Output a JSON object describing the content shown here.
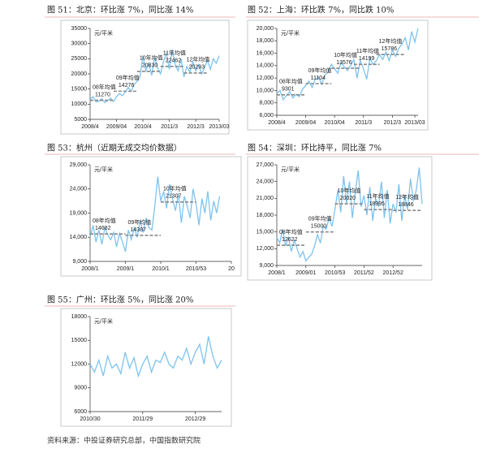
{
  "chart_data": [
    {
      "type": "line",
      "title": "图 51：北京：环比涨 7%，同比涨 14%",
      "unit": "元/平米",
      "ylim": [
        5000,
        35000
      ],
      "yticks": [
        5000,
        10000,
        15000,
        20000,
        25000,
        30000,
        35000
      ],
      "xlim": [
        0,
        44
      ],
      "xticks": [
        {
          "value": 0,
          "label": "2008/4"
        },
        {
          "value": 9,
          "label": "2009/04"
        },
        {
          "value": 18,
          "label": "2010/4"
        },
        {
          "value": 27,
          "label": "2011/3"
        },
        {
          "value": 36,
          "label": "2012/3"
        },
        {
          "value": 44,
          "label": "2013/03"
        }
      ],
      "series": [
        {
          "color": "#7ec3ee",
          "values": [
            11500,
            12500,
            10800,
            11000,
            11800,
            10500,
            11200,
            12000,
            10900,
            12500,
            13500,
            12800,
            14000,
            15500,
            14200,
            16500,
            17500,
            19000,
            26000,
            21000,
            23500,
            19500,
            25500,
            22000,
            20000,
            24000,
            27000,
            21500,
            28000,
            23000,
            21000,
            25000,
            19000,
            22500,
            20500,
            24000,
            21000,
            23000,
            20000,
            22000,
            24500,
            21500,
            25000,
            23500,
            26000
          ]
        }
      ],
      "mean_lines": [
        {
          "label": "08年均值",
          "value": 11270,
          "x": [
            0,
            8
          ]
        },
        {
          "label": "09年均值",
          "value": 14276,
          "x": [
            8,
            16
          ]
        },
        {
          "label": "10年均值",
          "value": 20830,
          "x": [
            16,
            24
          ]
        },
        {
          "label": "11年均值",
          "value": 22462,
          "x": [
            24,
            32
          ]
        },
        {
          "label": "12年均值",
          "value": 20293,
          "x": [
            32,
            40
          ]
        }
      ]
    },
    {
      "type": "line",
      "title": "图 52：上海：环比跌 7%，同比跌 10%",
      "unit": "元/平米",
      "ylim": [
        6000,
        20000
      ],
      "yticks": [
        {
          "value": 6000,
          "label": "6,000"
        },
        {
          "value": 8000,
          "label": "8,000"
        },
        {
          "value": 10000,
          "label": "10,000"
        },
        {
          "value": 12000,
          "label": "12,000"
        },
        {
          "value": 14000,
          "label": "14,000"
        },
        {
          "value": 16000,
          "label": "16,000"
        },
        {
          "value": 18000,
          "label": "18,000"
        },
        {
          "value": 20000,
          "label": "20,000"
        }
      ],
      "xlim": [
        0,
        44
      ],
      "xticks": [
        {
          "value": 0,
          "label": "2008/4"
        },
        {
          "value": 9,
          "label": "2009/04"
        },
        {
          "value": 18,
          "label": "2010/04"
        },
        {
          "value": 27,
          "label": "2011/3"
        },
        {
          "value": 36,
          "label": "2012/3"
        },
        {
          "value": 43,
          "label": "2013/03"
        }
      ],
      "series": [
        {
          "color": "#7ec3ee",
          "values": [
            9500,
            10000,
            8500,
            9200,
            9800,
            8800,
            9400,
            9000,
            10200,
            10800,
            11500,
            10500,
            11800,
            12200,
            11000,
            12500,
            13000,
            14200,
            13500,
            12800,
            14500,
            13800,
            13200,
            14000,
            15000,
            12000,
            14800,
            13500,
            11800,
            15200,
            14200,
            14800,
            15800,
            15000,
            16200,
            14800,
            16500,
            15500,
            16800,
            17500,
            18500,
            16500,
            19500,
            17800,
            20000
          ]
        }
      ],
      "mean_lines": [
        {
          "label": "08年均值",
          "value": 9301,
          "x": [
            0,
            9
          ]
        },
        {
          "label": "09年均值",
          "value": 11104,
          "x": [
            9,
            17
          ]
        },
        {
          "label": "10年均值",
          "value": 13576,
          "x": [
            17,
            26
          ]
        },
        {
          "label": "11年均值",
          "value": 14199,
          "x": [
            24,
            32
          ]
        },
        {
          "label": "12年均值",
          "value": 15786,
          "x": [
            31,
            40
          ]
        }
      ]
    },
    {
      "type": "line",
      "title": "图 53：杭州（近期无成交均价数据）",
      "unit": "元/平米",
      "ylim": [
        9000,
        29000
      ],
      "yticks": [
        {
          "value": 9000,
          "label": "9,000"
        },
        {
          "value": 14000,
          "label": "14,000"
        },
        {
          "value": 19000,
          "label": "19,000"
        },
        {
          "value": 24000,
          "label": "24,000"
        },
        {
          "value": 29000,
          "label": "29,000"
        }
      ],
      "xlim": [
        0,
        48
      ],
      "xticks": [
        {
          "value": 0,
          "label": "2008/1"
        },
        {
          "value": 12,
          "label": "2009/1"
        },
        {
          "value": 24,
          "label": "2010/1"
        },
        {
          "value": 36,
          "label": "2010/53"
        },
        {
          "value": 48,
          "label": "20"
        }
      ],
      "series": [
        {
          "color": "#7ec3ee",
          "values": [
            14000,
            16500,
            13000,
            15500,
            12500,
            16000,
            14500,
            13500,
            15000,
            12000,
            14800,
            13000,
            11000,
            15500,
            13500,
            16000,
            14000,
            17500,
            15000,
            18000,
            16000,
            15500,
            20500,
            26500,
            21500,
            23500,
            20000,
            25000,
            22000,
            19500,
            23000,
            17000,
            22500,
            20500,
            18000,
            24000,
            21000,
            16500,
            22000,
            19000,
            23500,
            17500,
            21500,
            19000,
            22500
          ]
        }
      ],
      "mean_lines": [
        {
          "label": "08年均值",
          "value": 14682,
          "x": [
            0,
            12
          ]
        },
        {
          "label": "09年均值",
          "value": 14387,
          "x": [
            12,
            24
          ]
        },
        {
          "label": "10年均值",
          "value": 21307,
          "x": [
            24,
            36
          ]
        }
      ]
    },
    {
      "type": "line",
      "title": "图 54：深圳：环比持平，同比涨 7%",
      "unit": "元/平米",
      "ylim": [
        9000,
        27000
      ],
      "yticks": [
        {
          "value": 9000,
          "label": "9,000"
        },
        {
          "value": 12000,
          "label": "12,000"
        },
        {
          "value": 15000,
          "label": "15,000"
        },
        {
          "value": 18000,
          "label": "18,000"
        },
        {
          "value": 21000,
          "label": "21,000"
        },
        {
          "value": 24000,
          "label": "24,000"
        },
        {
          "value": 27000,
          "label": "27,000"
        }
      ],
      "xlim": [
        0,
        50
      ],
      "xticks": [
        {
          "value": 0,
          "label": "2008/1"
        },
        {
          "value": 10,
          "label": "2009/01"
        },
        {
          "value": 20,
          "label": "2010/53"
        },
        {
          "value": 30,
          "label": "2011/52"
        },
        {
          "value": 40,
          "label": "2012/52"
        }
      ],
      "series": [
        {
          "color": "#7ec3ee",
          "values": [
            14000,
            13000,
            15500,
            12500,
            14000,
            11500,
            13500,
            12000,
            10500,
            11500,
            9800,
            10500,
            11000,
            12500,
            14500,
            13000,
            16000,
            15500,
            17500,
            16000,
            19000,
            22500,
            18500,
            25000,
            20000,
            24000,
            17500,
            22000,
            26000,
            19500,
            21500,
            18000,
            23000,
            17000,
            21000,
            19500,
            24000,
            17500,
            22500,
            16500,
            20000,
            18500,
            23500,
            17000,
            21500,
            19000,
            24500,
            20500,
            22500,
            26500,
            20000
          ]
        }
      ],
      "mean_lines": [
        {
          "label": "08年均值",
          "value": 12622,
          "x": [
            0,
            10
          ]
        },
        {
          "label": "09年均值",
          "value": 15000,
          "x": [
            10,
            20
          ]
        },
        {
          "label": "10年均值",
          "value": 20020,
          "x": [
            20,
            30
          ]
        },
        {
          "label": "11年均值",
          "value": 18995,
          "x": [
            30,
            40
          ]
        },
        {
          "label": "12年均值",
          "value": 18846,
          "x": [
            40,
            50
          ]
        }
      ]
    },
    {
      "type": "line",
      "title": "图 55：广州：环比涨 5%，同比涨 20%",
      "unit": "元/平米",
      "ylim": [
        6000,
        18000
      ],
      "yticks": [
        6000,
        9000,
        12000,
        15000,
        18000
      ],
      "xlim": [
        0,
        30
      ],
      "xticks": [
        {
          "value": 0,
          "label": "2010/30"
        },
        {
          "value": 12,
          "label": "2011/29"
        },
        {
          "value": 24,
          "label": "2012/29"
        }
      ],
      "series": [
        {
          "color": "#7ec3ee",
          "values": [
            12000,
            11000,
            12500,
            10500,
            13000,
            11500,
            12000,
            10800,
            13500,
            11500,
            12800,
            10500,
            12000,
            13000,
            11000,
            12500,
            12200,
            13500,
            12000,
            11500,
            13000,
            12500,
            14000,
            12000,
            13500,
            14500,
            12000,
            15500,
            13000,
            11500,
            12500
          ]
        }
      ],
      "mean_lines": []
    }
  ],
  "source": "资料来源：中投证券研究总部，中国指数研究院"
}
